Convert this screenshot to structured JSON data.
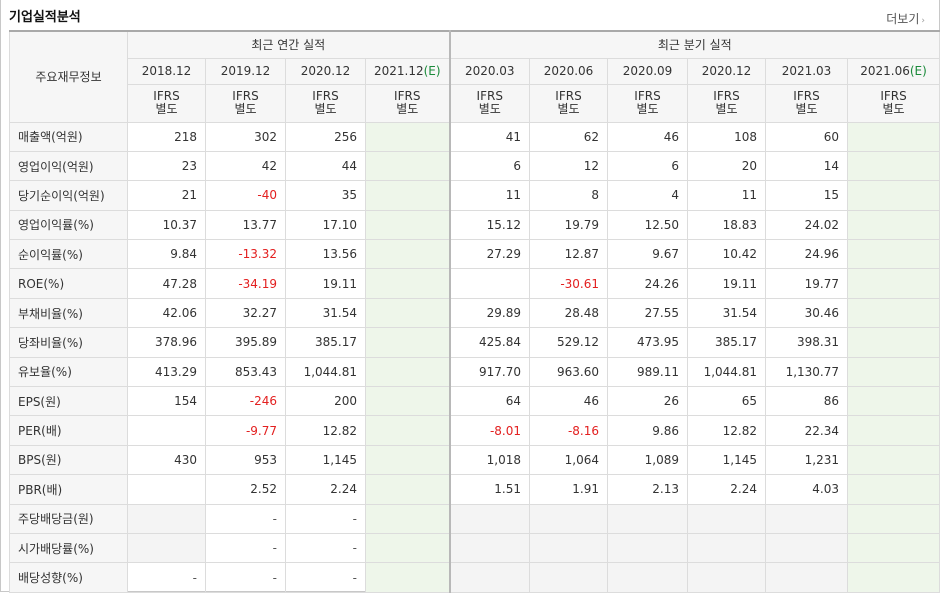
{
  "panel": {
    "title": "기업실적분석",
    "more_label": "더보기",
    "more_icon": "›"
  },
  "header": {
    "corner": "주요재무정보",
    "annual_group": "최근 연간 실적",
    "quarter_group": "최근 분기 실적",
    "annual_periods": [
      "2018.12",
      "2019.12",
      "2020.12",
      "2021.12"
    ],
    "annual_est_suffix": "(E)",
    "quarter_periods": [
      "2020.03",
      "2020.06",
      "2020.09",
      "2020.12",
      "2021.03",
      "2021.06"
    ],
    "quarter_est_suffix": "(E)",
    "std_top": "IFRS",
    "std_bottom": "별도"
  },
  "colors": {
    "negative": "#e32020",
    "estimate_bg": "#eef6ea",
    "ifrs_orange": "#ff6a00"
  },
  "rows": [
    {
      "label": "매출액(억원)",
      "annual": [
        "218",
        "302",
        "256",
        ""
      ],
      "quarter": [
        "41",
        "62",
        "46",
        "108",
        "60",
        ""
      ]
    },
    {
      "label": "영업이익(억원)",
      "annual": [
        "23",
        "42",
        "44",
        ""
      ],
      "quarter": [
        "6",
        "12",
        "6",
        "20",
        "14",
        ""
      ]
    },
    {
      "label": "당기순이익(억원)",
      "annual": [
        "21",
        "-40",
        "35",
        ""
      ],
      "quarter": [
        "11",
        "8",
        "4",
        "11",
        "15",
        ""
      ]
    },
    {
      "label": "영업이익률(%)",
      "annual": [
        "10.37",
        "13.77",
        "17.10",
        ""
      ],
      "quarter": [
        "15.12",
        "19.79",
        "12.50",
        "18.83",
        "24.02",
        ""
      ]
    },
    {
      "label": "순이익률(%)",
      "annual": [
        "9.84",
        "-13.32",
        "13.56",
        ""
      ],
      "quarter": [
        "27.29",
        "12.87",
        "9.67",
        "10.42",
        "24.96",
        ""
      ]
    },
    {
      "label": "ROE(%)",
      "annual": [
        "47.28",
        "-34.19",
        "19.11",
        ""
      ],
      "quarter": [
        "",
        "-30.61",
        "24.26",
        "19.11",
        "19.77",
        ""
      ]
    },
    {
      "label": "부채비율(%)",
      "annual": [
        "42.06",
        "32.27",
        "31.54",
        ""
      ],
      "quarter": [
        "29.89",
        "28.48",
        "27.55",
        "31.54",
        "30.46",
        ""
      ]
    },
    {
      "label": "당좌비율(%)",
      "annual": [
        "378.96",
        "395.89",
        "385.17",
        ""
      ],
      "quarter": [
        "425.84",
        "529.12",
        "473.95",
        "385.17",
        "398.31",
        ""
      ]
    },
    {
      "label": "유보율(%)",
      "annual": [
        "413.29",
        "853.43",
        "1,044.81",
        ""
      ],
      "quarter": [
        "917.70",
        "963.60",
        "989.11",
        "1,044.81",
        "1,130.77",
        ""
      ]
    },
    {
      "label": "EPS(원)",
      "annual": [
        "154",
        "-246",
        "200",
        ""
      ],
      "quarter": [
        "64",
        "46",
        "26",
        "65",
        "86",
        ""
      ]
    },
    {
      "label": "PER(배)",
      "annual": [
        "",
        "-9.77",
        "12.82",
        ""
      ],
      "quarter": [
        "-8.01",
        "-8.16",
        "9.86",
        "12.82",
        "22.34",
        ""
      ]
    },
    {
      "label": "BPS(원)",
      "annual": [
        "430",
        "953",
        "1,145",
        ""
      ],
      "quarter": [
        "1,018",
        "1,064",
        "1,089",
        "1,145",
        "1,231",
        ""
      ]
    },
    {
      "label": "PBR(배)",
      "annual": [
        "",
        "2.52",
        "2.24",
        ""
      ],
      "quarter": [
        "1.51",
        "1.91",
        "2.13",
        "2.24",
        "4.03",
        ""
      ]
    },
    {
      "label": "주당배당금(원)",
      "annual": [
        "",
        "-",
        "-",
        ""
      ],
      "quarter": [
        "",
        "",
        "",
        "",
        "",
        ""
      ]
    },
    {
      "label": "시가배당률(%)",
      "annual": [
        "",
        "-",
        "-",
        ""
      ],
      "quarter": [
        "",
        "",
        "",
        "",
        "",
        ""
      ]
    },
    {
      "label": "배당성향(%)",
      "annual": [
        "-",
        "-",
        "-",
        ""
      ],
      "quarter": [
        "",
        "",
        "",
        "",
        "",
        ""
      ]
    }
  ]
}
